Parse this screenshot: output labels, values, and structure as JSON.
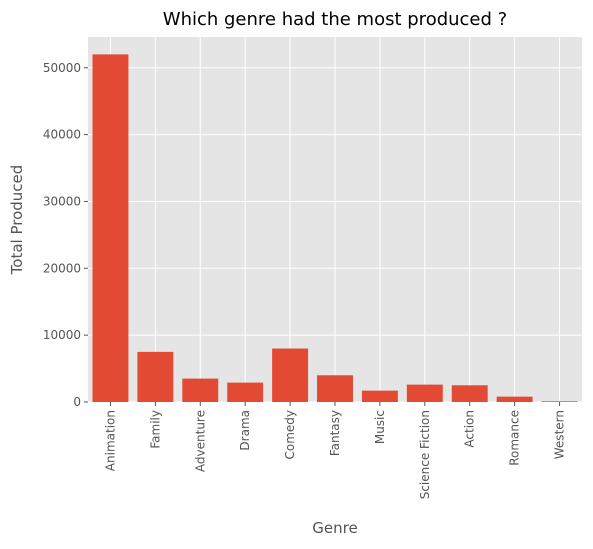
{
  "chart_data": {
    "type": "bar",
    "title": "Which genre had the most produced ?",
    "xlabel": "Genre",
    "ylabel": "Total Produced",
    "categories": [
      "Animation",
      "Family",
      "Adventure",
      "Drama",
      "Comedy",
      "Fantasy",
      "Music",
      "Science Fiction",
      "Action",
      "Romance",
      "Western"
    ],
    "values": [
      52000,
      7500,
      3500,
      2900,
      8000,
      4000,
      1700,
      2600,
      2500,
      800,
      100
    ],
    "ylim": [
      0,
      54600
    ],
    "yticks": [
      0,
      10000,
      20000,
      30000,
      40000,
      50000
    ],
    "grid": true,
    "legend": "none",
    "colors": {
      "bar": "#E24A33",
      "background": "#E5E5E5",
      "grid": "#FFFFFF",
      "text": "#555555"
    }
  }
}
